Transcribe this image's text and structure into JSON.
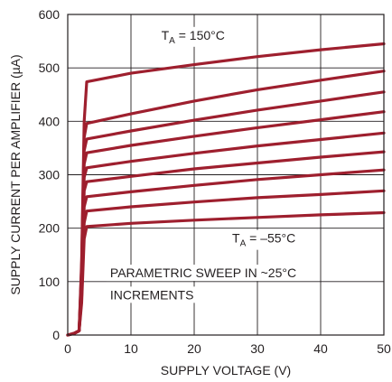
{
  "chart_data": {
    "type": "line",
    "xlabel": "SUPPLY VOLTAGE (V)",
    "ylabel": "SUPPLY CURRENT PER AMPLIFIER (µA)",
    "xlim": [
      0,
      50
    ],
    "ylim": [
      0,
      600
    ],
    "xticks": [
      "0",
      "10",
      "20",
      "30",
      "40",
      "50"
    ],
    "yticks": [
      "0",
      "100",
      "200",
      "300",
      "400",
      "500",
      "600"
    ],
    "grid": true,
    "series": [
      {
        "x": [
          0,
          1,
          1.8,
          2.2,
          2.6,
          3,
          10,
          20,
          30,
          40,
          50
        ],
        "values": [
          0,
          3,
          8,
          60,
          180,
          203,
          209,
          215,
          220,
          225,
          229
        ]
      },
      {
        "x": [
          0,
          1,
          1.8,
          2.2,
          2.6,
          3,
          10,
          20,
          30,
          40,
          50
        ],
        "values": [
          0,
          3,
          8,
          70,
          210,
          232,
          240,
          249,
          257,
          263,
          270
        ]
      },
      {
        "x": [
          0,
          1,
          1.8,
          2.2,
          2.6,
          3,
          10,
          20,
          30,
          40,
          50
        ],
        "values": [
          0,
          3,
          8,
          80,
          240,
          259,
          268,
          280,
          291,
          300,
          309
        ]
      },
      {
        "x": [
          0,
          1,
          1.8,
          2.2,
          2.6,
          3,
          10,
          20,
          30,
          40,
          50
        ],
        "values": [
          0,
          3,
          8,
          90,
          270,
          287,
          297,
          311,
          322,
          333,
          343
        ]
      },
      {
        "x": [
          0,
          1,
          1.8,
          2.2,
          2.6,
          3,
          10,
          20,
          30,
          40,
          50
        ],
        "values": [
          0,
          3,
          8,
          100,
          295,
          313,
          325,
          340,
          354,
          366,
          378
        ]
      },
      {
        "x": [
          0,
          1,
          1.8,
          2.2,
          2.6,
          3,
          10,
          20,
          30,
          40,
          50
        ],
        "values": [
          0,
          3,
          8,
          110,
          320,
          341,
          355,
          372,
          388,
          403,
          418
        ]
      },
      {
        "x": [
          0,
          1,
          1.8,
          2.2,
          2.6,
          3,
          10,
          20,
          30,
          40,
          50
        ],
        "values": [
          0,
          3,
          8,
          120,
          345,
          367,
          382,
          402,
          421,
          438,
          455
        ]
      },
      {
        "x": [
          0,
          1,
          1.8,
          2.2,
          2.6,
          3,
          10,
          20,
          30,
          40,
          50
        ],
        "values": [
          0,
          3,
          8,
          130,
          370,
          396,
          414,
          438,
          459,
          477,
          494
        ]
      },
      {
        "x": [
          0,
          1,
          1.8,
          2.2,
          2.6,
          3,
          10,
          20,
          30,
          40,
          50
        ],
        "values": [
          0,
          3,
          8,
          140,
          400,
          474,
          490,
          506,
          521,
          534,
          545
        ]
      }
    ],
    "annotations": [
      {
        "text": "T",
        "sub": "A",
        "rest": " = 150°C",
        "x": 14.8,
        "y": 553
      },
      {
        "text": "T",
        "sub": "A",
        "rest": " = –55°C",
        "x": 26,
        "y": 173
      },
      {
        "text": "PARAMETRIC SWEEP IN ~25°C",
        "x": 6.7,
        "y": 108
      },
      {
        "text": "INCREMENTS",
        "x": 6.7,
        "y": 67
      }
    ],
    "colors": {
      "curve": "#9e1f2e",
      "axis": "#231f20"
    }
  }
}
